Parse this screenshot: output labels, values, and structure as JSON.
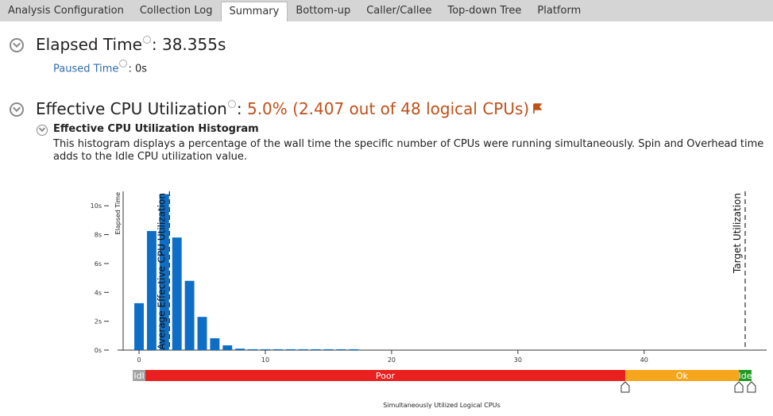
{
  "tabs": [
    "Analysis Configuration",
    "Collection Log",
    "Summary",
    "Bottom-up",
    "Caller/Callee",
    "Top-down Tree",
    "Platform"
  ],
  "active_tab": 2,
  "elapsed": {
    "label": "Elapsed Time",
    "value": ": 38.355s",
    "paused_label": "Paused Time",
    "paused_value": ": 0s"
  },
  "cpu": {
    "label": "Effective CPU Utilization",
    "colon": ":",
    "value": "5.0% (2.407 out of 48 logical CPUs)",
    "histogram_title": "Effective CPU Utilization Histogram",
    "description": "This histogram displays a percentage of the wall time the specific number of CPUs were running simultaneously. Spin and Overhead time adds to the Idle CPU utilization value."
  },
  "chart_data": {
    "type": "bar",
    "x": [
      0,
      1,
      2,
      3,
      4,
      5,
      6,
      7,
      8,
      9,
      10,
      11,
      12,
      13,
      14,
      15,
      16,
      17
    ],
    "values": [
      3.25,
      8.25,
      10.8,
      7.8,
      4.8,
      2.3,
      0.82,
      0.33,
      0.1,
      0.06,
      0.06,
      0.06,
      0.06,
      0.06,
      0.06,
      0.06,
      0.06,
      0.06
    ],
    "color": "#0e6ec5",
    "xlim": [
      -1.7,
      49.7
    ],
    "ylim": [
      0,
      11
    ],
    "xticks": [
      0,
      10,
      20,
      30,
      40
    ],
    "yticks": [
      {
        "value": 0,
        "label": "0s"
      },
      {
        "value": 2,
        "label": "2s"
      },
      {
        "value": 4,
        "label": "4s"
      },
      {
        "value": 6,
        "label": "6s"
      },
      {
        "value": 8,
        "label": "8s"
      },
      {
        "value": 10,
        "label": "10s"
      }
    ],
    "xlabel": "Simultaneously Utilized Logical CPUs",
    "ylabel": "Elapsed Time",
    "annotations": [
      {
        "x": 2.407,
        "label": "Average Effective CPU Utilization"
      },
      {
        "x": 48,
        "label": "Target Utilization"
      }
    ],
    "bands": [
      {
        "label": "Idl",
        "from": -0.5,
        "to": 0.5,
        "color": "#a3a3a3"
      },
      {
        "label": "Poor",
        "from": 0.5,
        "to": 38.5,
        "color": "#e8201f"
      },
      {
        "label": "Ok",
        "from": 38.5,
        "to": 47.5,
        "color": "#f6a61c"
      },
      {
        "label": "Ide",
        "from": 47.5,
        "to": 48.5,
        "color": "#1e9a1e"
      }
    ],
    "thresholds": [
      38.5,
      47.5,
      48.5
    ]
  }
}
